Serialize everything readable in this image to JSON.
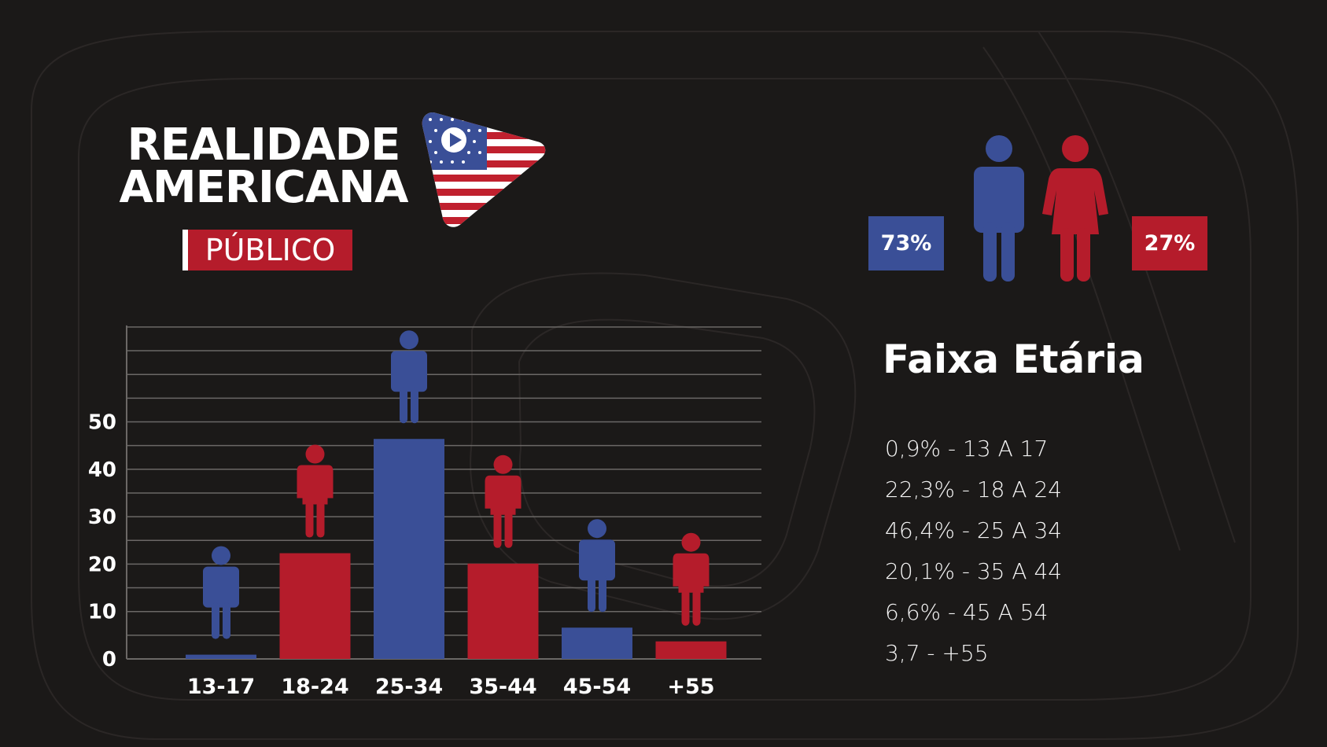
{
  "brand": {
    "title_line1": "REALIDADE",
    "title_line2": "AMERICANA",
    "section": "PÚBLICO"
  },
  "gender": {
    "male_pct": "73%",
    "female_pct": "27%",
    "male_icon": "male-person-icon",
    "female_icon": "female-person-icon"
  },
  "age_panel": {
    "title": "Faixa Etária",
    "items": [
      "0,9% - 13 A 17",
      "22,3% - 18 A 24",
      "46,4% - 25 A 34",
      "20,1% - 35 A 44",
      "6,6% - 45 A 54",
      "3,7 - +55"
    ]
  },
  "colors": {
    "background": "#1b1918",
    "blue": "#3a4f97",
    "red": "#b51c2b",
    "grid": "#6b6866"
  },
  "chart_data": {
    "type": "bar",
    "categories": [
      "13-17",
      "18-24",
      "25-34",
      "35-44",
      "45-54",
      "+55"
    ],
    "values": [
      0.9,
      22.3,
      46.4,
      20.1,
      6.6,
      3.7
    ],
    "bar_colors": [
      "blue",
      "red",
      "blue",
      "red",
      "blue",
      "red"
    ],
    "bar_icons": [
      "male-person-icon",
      "female-person-icon",
      "male-person-icon",
      "female-person-icon",
      "male-person-icon",
      "female-person-icon"
    ],
    "yticks": [
      0,
      10,
      20,
      30,
      40,
      50
    ],
    "ylim": [
      0,
      70
    ],
    "grid_step": 5,
    "grid": true,
    "title": "",
    "xlabel": "",
    "ylabel": ""
  }
}
